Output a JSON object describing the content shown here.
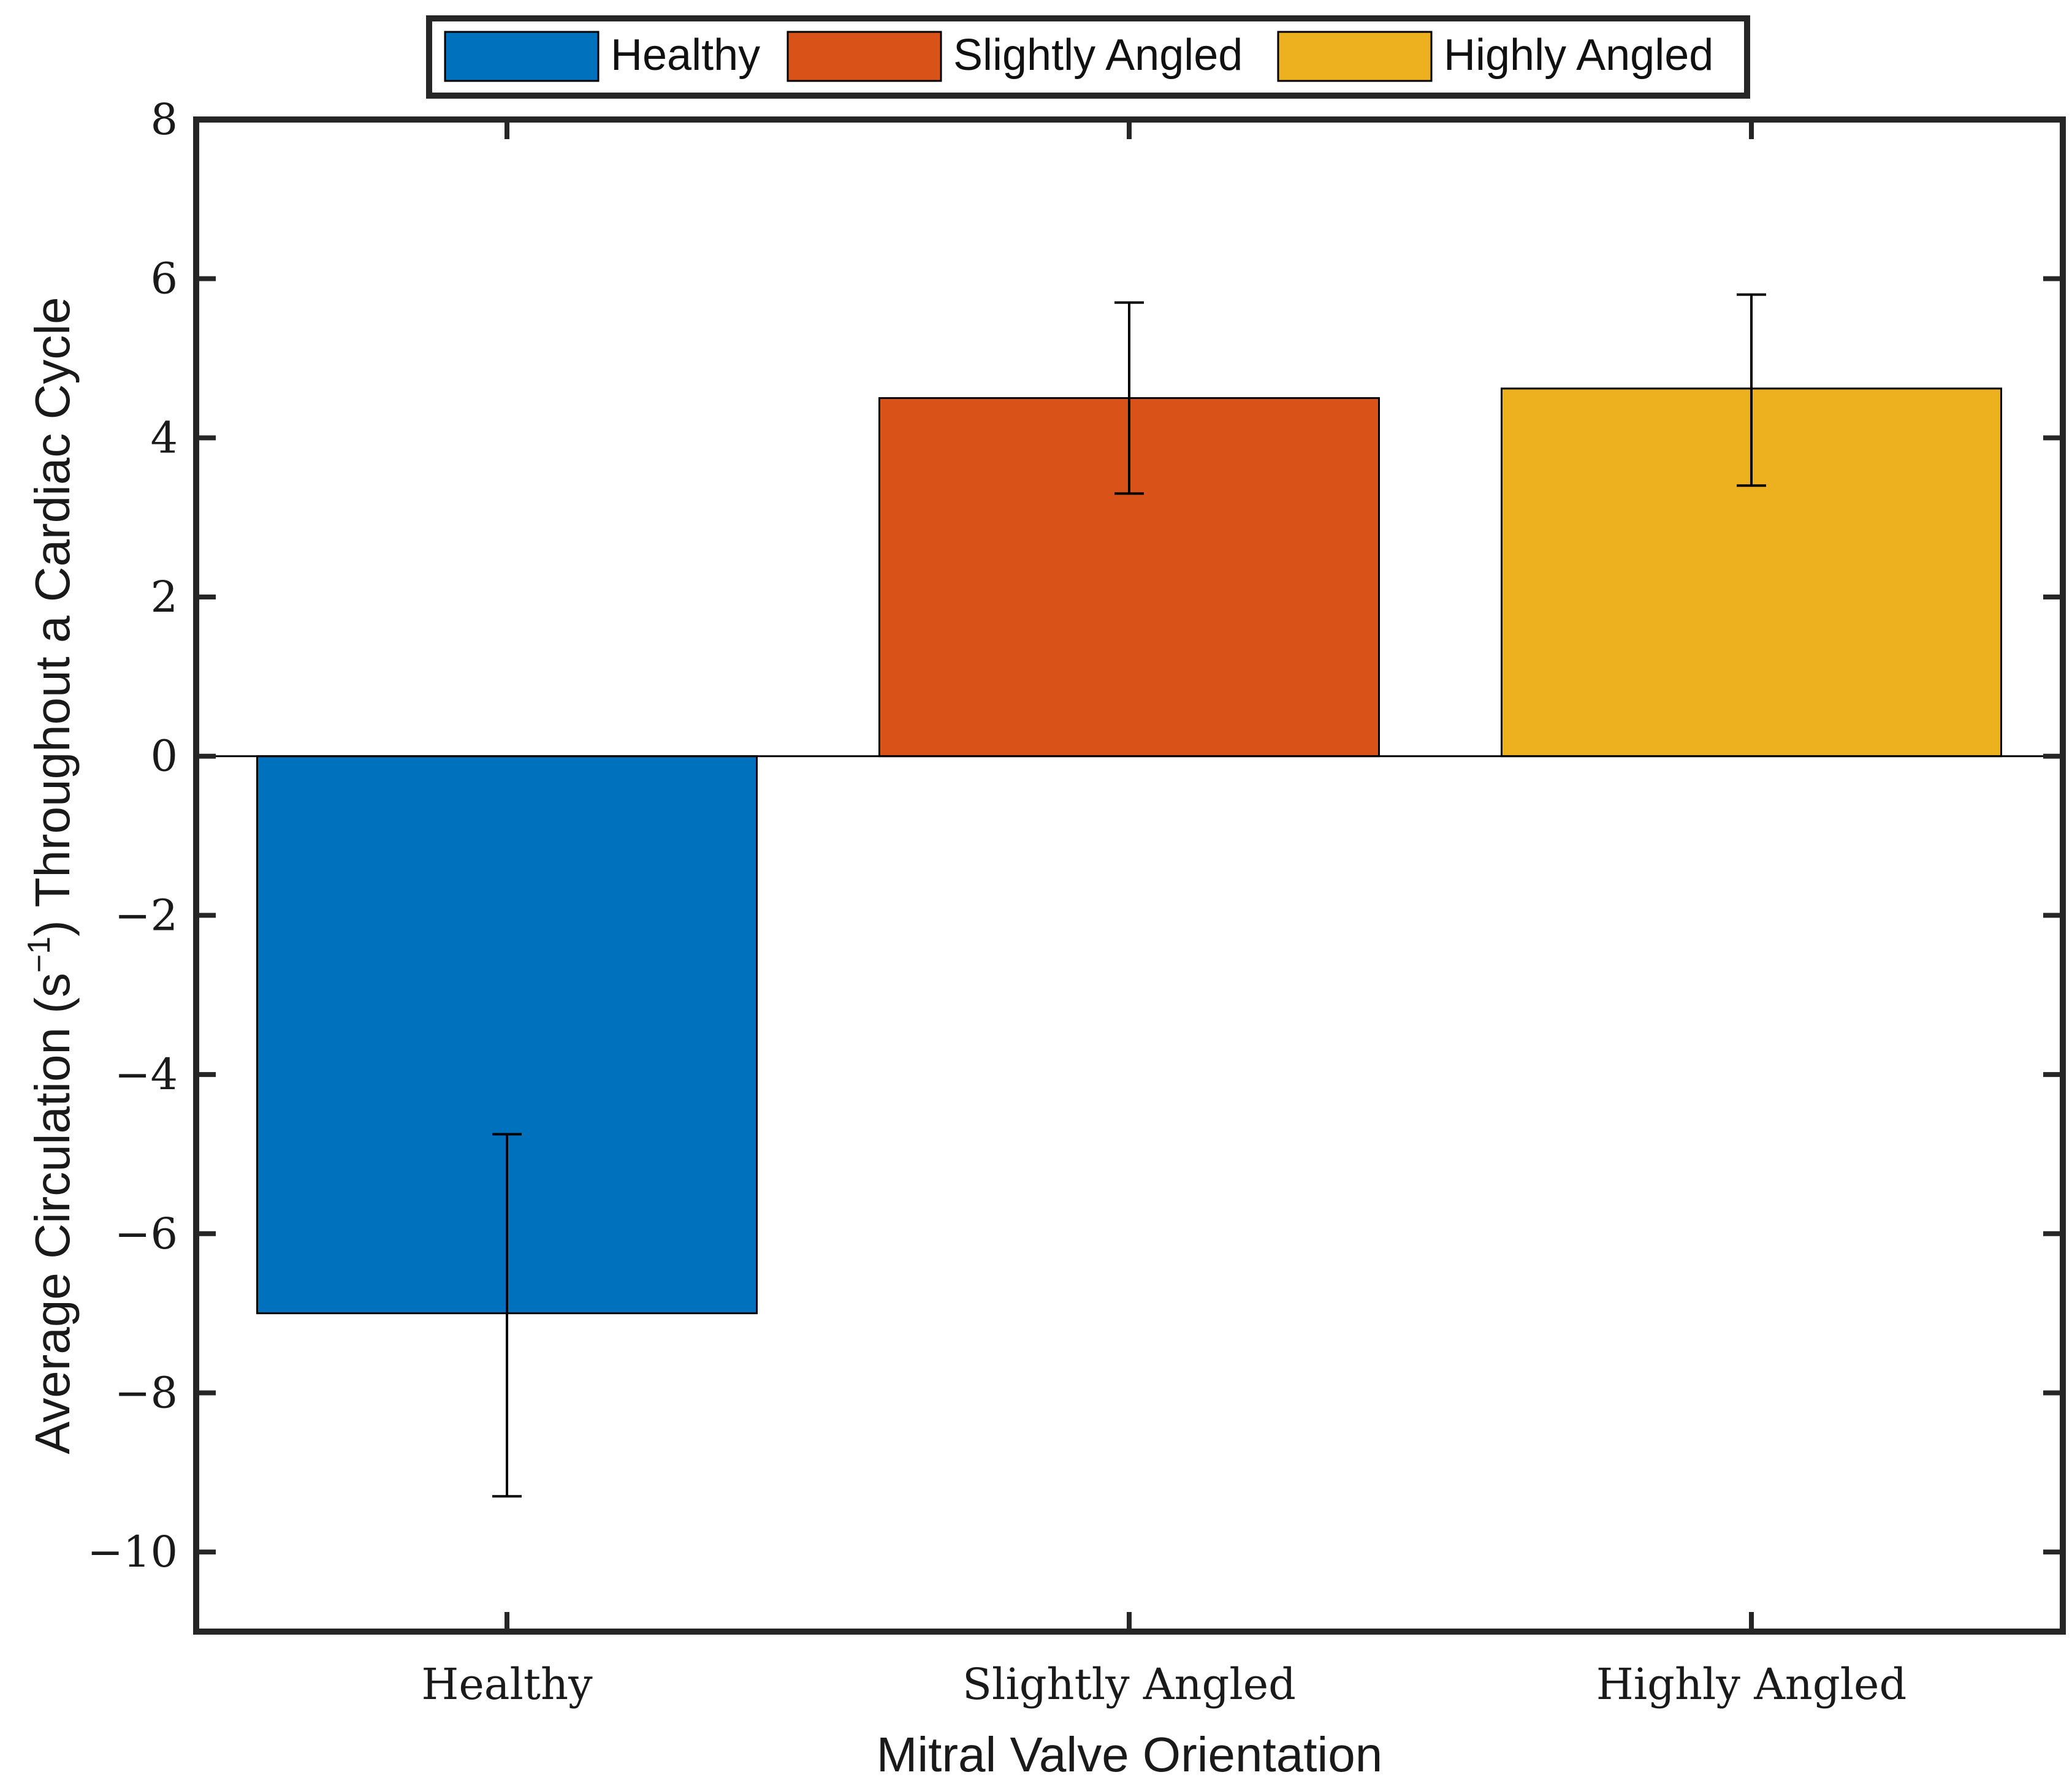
{
  "chart_data": {
    "type": "bar",
    "categories": [
      "Healthy",
      "Slightly Angled",
      "Highly Angled"
    ],
    "values": [
      -7.0,
      4.5,
      4.62
    ],
    "errors": [
      {
        "low": -9.3,
        "high": -4.75
      },
      {
        "low": 3.3,
        "high": 5.7
      },
      {
        "low": 3.4,
        "high": 5.8
      }
    ],
    "colors": [
      "#0072bd",
      "#d95319",
      "#edb120"
    ],
    "title": "",
    "xlabel": "Mitral Valve Orientation",
    "ylabel": {
      "prefix": "Average Circulation (s",
      "sup": "−1",
      "suffix": ") Throughout a Cardiac Cycle"
    },
    "ylim": [
      -11,
      8
    ],
    "yticks": [
      8,
      6,
      4,
      2,
      0,
      -2,
      -4,
      -6,
      -8,
      -10
    ],
    "ytick_labels": [
      "8",
      "6",
      "4",
      "2",
      "0",
      "−2",
      "−4",
      "−6",
      "−8",
      "−10"
    ],
    "legend": {
      "position": "top-outside",
      "entries": [
        "Healthy",
        "Slightly Angled",
        "Highly Angled"
      ]
    },
    "grid": false
  }
}
